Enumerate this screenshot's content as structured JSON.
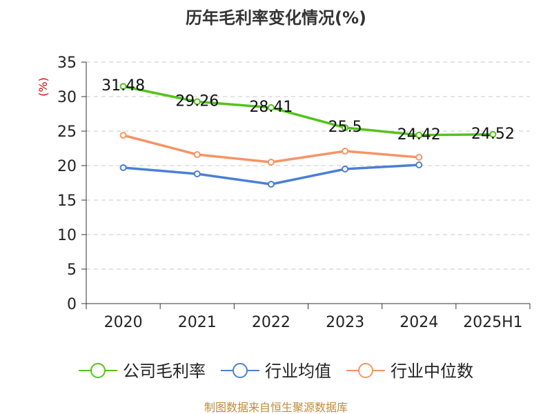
{
  "chart_data": {
    "type": "line",
    "title": "历年毛利率变化情况(%)",
    "ylabel": "(%)",
    "xlabel": "",
    "categories": [
      "2020",
      "2021",
      "2022",
      "2023",
      "2024",
      "2025H1"
    ],
    "ylim": [
      0,
      35
    ],
    "yticks": [
      0,
      5,
      10,
      15,
      20,
      25,
      30,
      35
    ],
    "grid": "horizontal dashed",
    "legend_position": "bottom",
    "series": [
      {
        "name": "公司毛利率",
        "color": "#52c41a",
        "show_labels": true,
        "values": [
          31.48,
          29.26,
          28.41,
          25.5,
          24.42,
          24.52
        ],
        "labels": [
          "31.48",
          "29.26",
          "28.41",
          "25.5",
          "24.42",
          "24.52"
        ]
      },
      {
        "name": "行业均值",
        "color": "#4a7fd6",
        "show_labels": false,
        "values": [
          19.7,
          18.8,
          17.3,
          19.5,
          20.1,
          null
        ]
      },
      {
        "name": "行业中位数",
        "color": "#f59464",
        "show_labels": false,
        "values": [
          24.4,
          21.6,
          20.5,
          22.1,
          21.2,
          null
        ]
      }
    ]
  },
  "footer": {
    "source": "制图数据来自恒生聚源数据库"
  }
}
